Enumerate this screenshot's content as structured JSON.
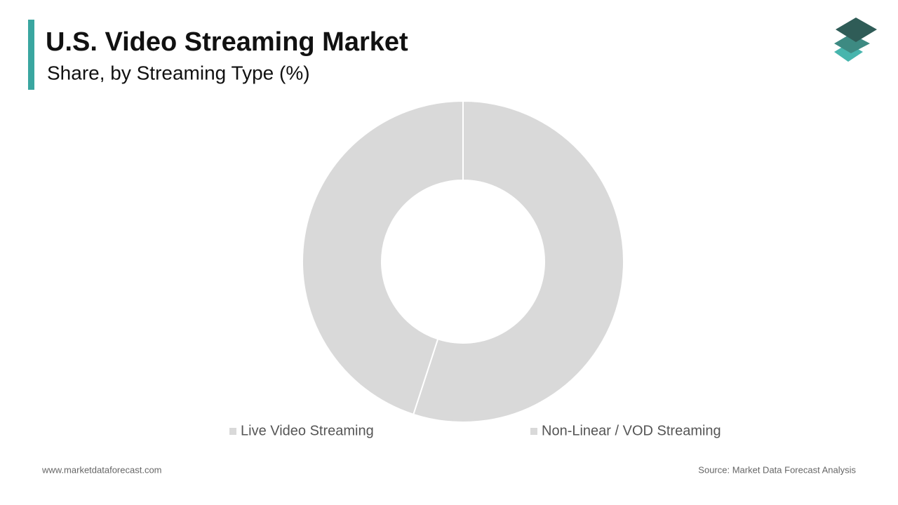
{
  "chart_data": {
    "type": "pie",
    "title": "U.S. Video Streaming Market",
    "subtitle": "Share, by Streaming Type (%)",
    "categories": [
      "Live Video Streaming",
      "Non-Linear / VOD Streaming"
    ],
    "values": [
      55,
      45
    ],
    "colors": [
      "#d9d9d9",
      "#d9d9d9"
    ],
    "donut": true,
    "legend": "bottom"
  },
  "footer": {
    "website": "www.marketdataforecast.com",
    "source": "Source: Market Data Forecast Analysis"
  }
}
